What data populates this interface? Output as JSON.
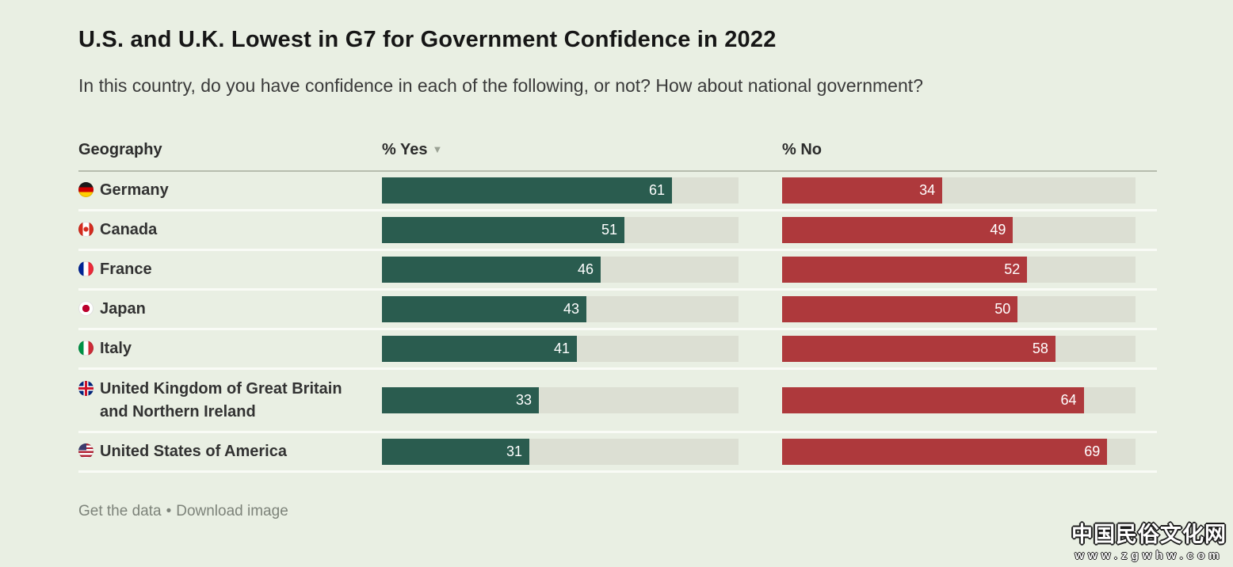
{
  "title": "U.S. and U.K. Lowest in G7 for Government Confidence in 2022",
  "subtitle": "In this country, do you have confidence in each of the following, or not? How about national government?",
  "table": {
    "headers": {
      "geography": "Geography",
      "yes": "% Yes",
      "no": "% No"
    },
    "sort_indicator": "▼",
    "sorted_by": "% Yes descending"
  },
  "rows": [
    {
      "country": "Germany",
      "flag_icon": "germany-flag-icon",
      "yes": 61,
      "no": 34
    },
    {
      "country": "Canada",
      "flag_icon": "canada-flag-icon",
      "yes": 51,
      "no": 49
    },
    {
      "country": "France",
      "flag_icon": "france-flag-icon",
      "yes": 46,
      "no": 52
    },
    {
      "country": "Japan",
      "flag_icon": "japan-flag-icon",
      "yes": 43,
      "no": 50
    },
    {
      "country": "Italy",
      "flag_icon": "italy-flag-icon",
      "yes": 41,
      "no": 58
    },
    {
      "country": "United Kingdom of Great Britain and Northern Ireland",
      "flag_icon": "uk-flag-icon",
      "yes": 33,
      "no": 64
    },
    {
      "country": "United States of America",
      "flag_icon": "us-flag-icon",
      "yes": 31,
      "no": 69
    }
  ],
  "chart_data": {
    "type": "bar",
    "title": "U.S. and U.K. Lowest in G7 for Government Confidence in 2022",
    "subtitle": "In this country, do you have confidence in each of the following, or not? How about national government?",
    "categories": [
      "Germany",
      "Canada",
      "France",
      "Japan",
      "Italy",
      "United Kingdom of Great Britain and Northern Ireland",
      "United States of America"
    ],
    "series": [
      {
        "name": "% Yes",
        "values": [
          61,
          51,
          46,
          43,
          41,
          33,
          31
        ],
        "color": "#2a5c4f"
      },
      {
        "name": "% No",
        "values": [
          34,
          49,
          52,
          50,
          58,
          64,
          69
        ],
        "color": "#ae393c"
      }
    ],
    "xlabel": "",
    "ylabel": "",
    "xlim": [
      0,
      75
    ],
    "grid": false,
    "legend_position": "column-headers"
  },
  "footer": {
    "get_data_label": "Get the data",
    "separator": "•",
    "download_label": "Download image"
  },
  "watermark": {
    "line1": "中国民俗文化网",
    "line2": "www.zgwhw.com"
  },
  "colors": {
    "background": "#e9efe3",
    "yes_bar": "#2a5c4f",
    "no_bar": "#ae393c",
    "bar_track": "#dcdfd3",
    "title_text": "#161616",
    "footer_text": "#7d837a"
  }
}
